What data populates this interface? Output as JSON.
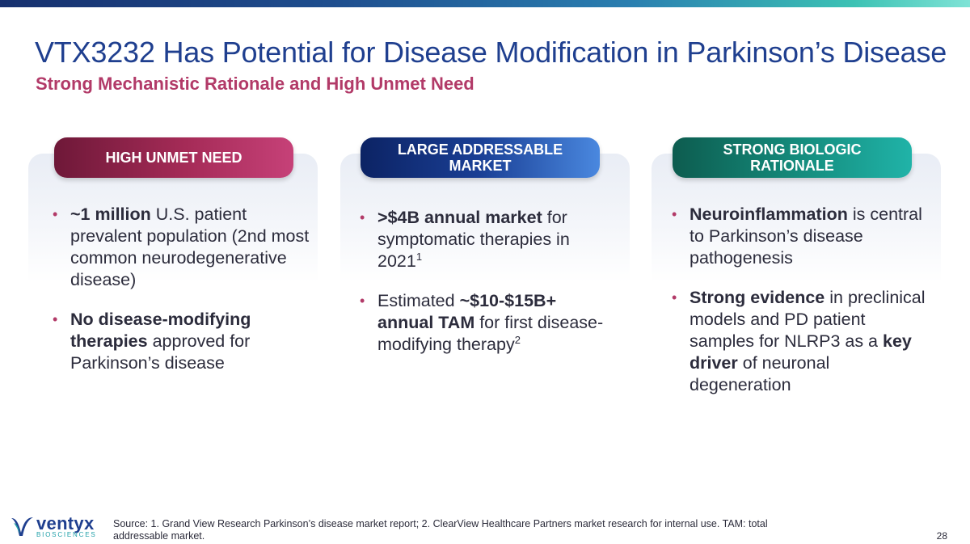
{
  "slide": {
    "title": "VTX3232 Has Potential for Disease Modification in Parkinson’s Disease",
    "subtitle": "Strong Mechanistic Rationale and High Unmet Need",
    "page_number": "28",
    "source": "Source: 1. Grand View Research Parkinson’s disease market report; 2. ClearView Healthcare Partners market research for internal use. TAM: total addressable market."
  },
  "logo": {
    "name": "ventyx",
    "tagline": "BIOSCIENCES"
  },
  "columns": [
    {
      "header": "HIGH UNMET NEED",
      "bullets": [
        {
          "bold": "~1 million",
          "text": " U.S. patient prevalent population (2nd most common neurodegenerative disease)"
        },
        {
          "bold": "No disease-modifying therapies",
          "text": " approved for Parkinson’s disease"
        }
      ]
    },
    {
      "header": "LARGE ADDRESSABLE\nMARKET",
      "bullets": [
        {
          "bold": ">$4B annual market",
          "text": " for symptomatic therapies in 2021",
          "sup": "1"
        },
        {
          "pre": "Estimated ",
          "bold": "~$10-$15B+ annual TAM",
          "text": " for first disease-modifying therapy",
          "sup": "2"
        }
      ]
    },
    {
      "header": "STRONG BIOLOGIC\nRATIONALE",
      "bullets": [
        {
          "bold": "Neuroinflammation",
          "text": " is central to Parkinson’s disease pathogenesis"
        },
        {
          "bold": "Strong evidence",
          "text": " in preclinical models and PD patient samples for NLRP3 as a ",
          "bold2": "key driver",
          "text2": " of neuronal degeneration"
        }
      ]
    }
  ],
  "colors": {
    "title": "#1f3f8f",
    "subtitle": "#b23a68",
    "pill_1": "#a52b57",
    "pill_2": "#1a3f95",
    "pill_3": "#14897a"
  },
  "icons": {
    "logo_mark": "ventyx-v-mark-icon",
    "bullet": "bullet-dot-icon"
  }
}
